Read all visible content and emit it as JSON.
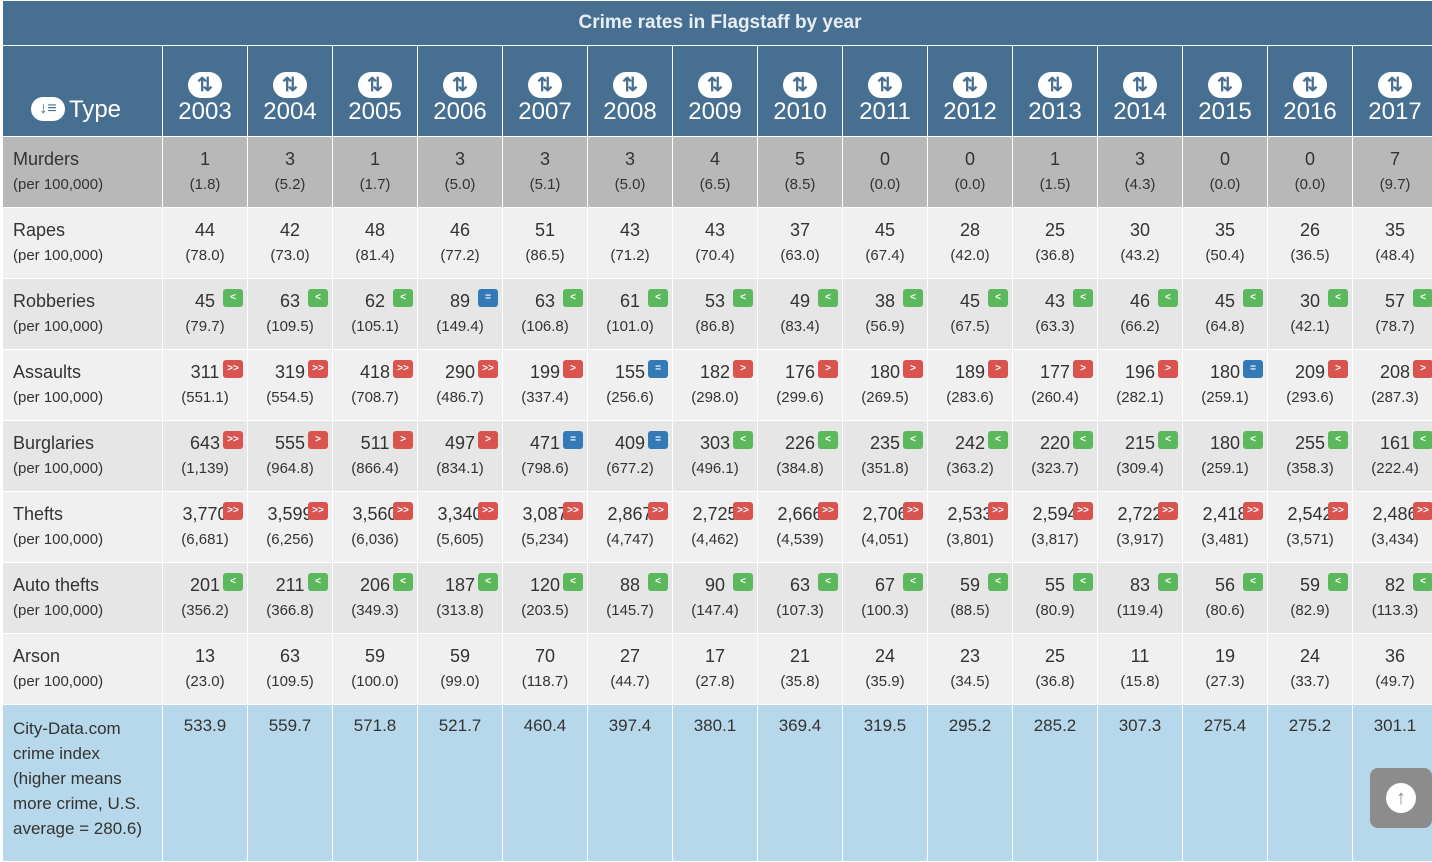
{
  "table": {
    "title": "Crime rates in Flagstaff by year",
    "type_header": "Type",
    "years": [
      "2003",
      "2004",
      "2005",
      "2006",
      "2007",
      "2008",
      "2009",
      "2010",
      "2011",
      "2012",
      "2013",
      "2014",
      "2015",
      "2016",
      "2017"
    ],
    "per_label": "(per 100,000)",
    "rows": [
      {
        "key": "murders",
        "name": "Murders",
        "style": "r-murders",
        "values": [
          "1",
          "3",
          "1",
          "3",
          "3",
          "3",
          "4",
          "5",
          "0",
          "0",
          "1",
          "3",
          "0",
          "0",
          "7"
        ],
        "rates": [
          "(1.8)",
          "(5.2)",
          "(1.7)",
          "(5.0)",
          "(5.1)",
          "(5.0)",
          "(6.5)",
          "(8.5)",
          "(0.0)",
          "(0.0)",
          "(1.5)",
          "(4.3)",
          "(0.0)",
          "(0.0)",
          "(9.7)"
        ],
        "badges": []
      },
      {
        "key": "rapes",
        "name": "Rapes",
        "style": "r-plain",
        "values": [
          "44",
          "42",
          "48",
          "46",
          "51",
          "43",
          "43",
          "37",
          "45",
          "28",
          "25",
          "30",
          "35",
          "26",
          "35"
        ],
        "rates": [
          "(78.0)",
          "(73.0)",
          "(81.4)",
          "(77.2)",
          "(86.5)",
          "(71.2)",
          "(70.4)",
          "(63.0)",
          "(67.4)",
          "(42.0)",
          "(36.8)",
          "(43.2)",
          "(50.4)",
          "(36.5)",
          "(48.4)"
        ],
        "badges": []
      },
      {
        "key": "robberies",
        "name": "Robberies",
        "style": "r-alt",
        "values": [
          "45",
          "63",
          "62",
          "89",
          "63",
          "61",
          "53",
          "49",
          "38",
          "45",
          "43",
          "46",
          "45",
          "30",
          "57"
        ],
        "rates": [
          "(79.7)",
          "(109.5)",
          "(105.1)",
          "(149.4)",
          "(106.8)",
          "(101.0)",
          "(86.8)",
          "(83.4)",
          "(56.9)",
          "(67.5)",
          "(63.3)",
          "(66.2)",
          "(64.8)",
          "(42.1)",
          "(78.7)"
        ],
        "badges": [
          "<",
          "<",
          "<",
          "=",
          "<",
          "<",
          "<",
          "<",
          "<",
          "<",
          "<",
          "<",
          "<",
          "<",
          "<"
        ]
      },
      {
        "key": "assaults",
        "name": "Assaults",
        "style": "r-plain",
        "values": [
          "311",
          "319",
          "418",
          "290",
          "199",
          "155",
          "182",
          "176",
          "180",
          "189",
          "177",
          "196",
          "180",
          "209",
          "208"
        ],
        "rates": [
          "(551.1)",
          "(554.5)",
          "(708.7)",
          "(486.7)",
          "(337.4)",
          "(256.6)",
          "(298.0)",
          "(299.6)",
          "(269.5)",
          "(283.6)",
          "(260.4)",
          "(282.1)",
          "(259.1)",
          "(293.6)",
          "(287.3)"
        ],
        "badges": [
          ">>",
          ">>",
          ">>",
          ">>",
          ">",
          "=",
          ">",
          ">",
          ">",
          ">",
          ">",
          ">",
          "=",
          ">",
          ">"
        ]
      },
      {
        "key": "burglaries",
        "name": "Burglaries",
        "style": "r-alt",
        "values": [
          "643",
          "555",
          "511",
          "497",
          "471",
          "409",
          "303",
          "226",
          "235",
          "242",
          "220",
          "215",
          "180",
          "255",
          "161"
        ],
        "rates": [
          "(1,139)",
          "(964.8)",
          "(866.4)",
          "(834.1)",
          "(798.6)",
          "(677.2)",
          "(496.1)",
          "(384.8)",
          "(351.8)",
          "(363.2)",
          "(323.7)",
          "(309.4)",
          "(259.1)",
          "(358.3)",
          "(222.4)"
        ],
        "badges": [
          ">>",
          ">",
          ">",
          ">",
          "=",
          "=",
          "<",
          "<",
          "<",
          "<",
          "<",
          "<",
          "<",
          "<",
          "<"
        ]
      },
      {
        "key": "thefts",
        "name": "Thefts",
        "style": "r-plain",
        "values": [
          "3,770",
          "3,599",
          "3,560",
          "3,340",
          "3,087",
          "2,867",
          "2,725",
          "2,666",
          "2,706",
          "2,533",
          "2,594",
          "2,722",
          "2,418",
          "2,542",
          "2,486"
        ],
        "rates": [
          "(6,681)",
          "(6,256)",
          "(6,036)",
          "(5,605)",
          "(5,234)",
          "(4,747)",
          "(4,462)",
          "(4,539)",
          "(4,051)",
          "(3,801)",
          "(3,817)",
          "(3,917)",
          "(3,481)",
          "(3,571)",
          "(3,434)"
        ],
        "badges": [
          ">>",
          ">>",
          ">>",
          ">>",
          ">>",
          ">>",
          ">>",
          ">>",
          ">>",
          ">>",
          ">>",
          ">>",
          ">>",
          ">>",
          ">>"
        ]
      },
      {
        "key": "auto-thefts",
        "name": "Auto thefts",
        "style": "r-alt",
        "values": [
          "201",
          "211",
          "206",
          "187",
          "120",
          "88",
          "90",
          "63",
          "67",
          "59",
          "55",
          "83",
          "56",
          "59",
          "82"
        ],
        "rates": [
          "(356.2)",
          "(366.8)",
          "(349.3)",
          "(313.8)",
          "(203.5)",
          "(145.7)",
          "(147.4)",
          "(107.3)",
          "(100.3)",
          "(88.5)",
          "(80.9)",
          "(119.4)",
          "(80.6)",
          "(82.9)",
          "(113.3)"
        ],
        "badges": [
          "<",
          "<",
          "<",
          "<",
          "<",
          "<",
          "<",
          "<",
          "<",
          "<",
          "<",
          "<",
          "<",
          "<",
          "<"
        ]
      },
      {
        "key": "arson",
        "name": "Arson",
        "style": "r-plain",
        "values": [
          "13",
          "63",
          "59",
          "59",
          "70",
          "27",
          "17",
          "21",
          "24",
          "23",
          "25",
          "11",
          "19",
          "24",
          "36"
        ],
        "rates": [
          "(23.0)",
          "(109.5)",
          "(100.0)",
          "(99.0)",
          "(118.7)",
          "(44.7)",
          "(27.8)",
          "(35.8)",
          "(35.9)",
          "(34.5)",
          "(36.8)",
          "(15.8)",
          "(27.3)",
          "(33.7)",
          "(49.7)"
        ],
        "badges": []
      }
    ],
    "index_row": {
      "label_lines": [
        "City-Data.com",
        "crime index",
        "(higher means",
        "more crime, U.S.",
        "average = 280.6)"
      ],
      "values": [
        "533.9",
        "559.7",
        "571.8",
        "521.7",
        "460.4",
        "397.4",
        "380.1",
        "369.4",
        "319.5",
        "295.2",
        "285.2",
        "307.3",
        "275.4",
        "275.2",
        "301.1"
      ]
    }
  },
  "icons": {
    "sort": "sort-arrows-icon",
    "type_sort": "sort-amount-icon",
    "scroll_top": "arrow-up-icon"
  },
  "colors": {
    "header": "#476f91",
    "badge_lower": "#5cb85c",
    "badge_higher": "#d9534f",
    "badge_equal": "#337ab7",
    "index_row": "#b6d8ea"
  }
}
